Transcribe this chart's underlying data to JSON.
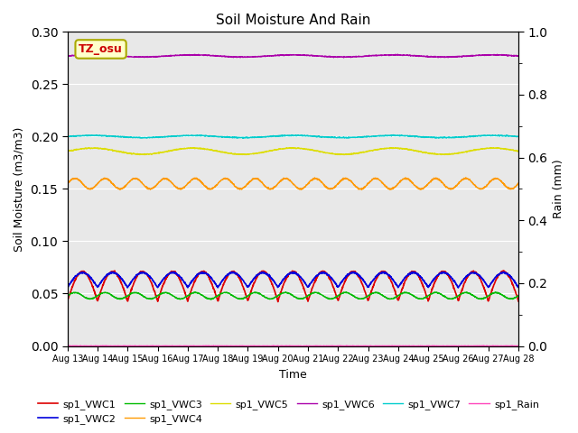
{
  "title": "Soil Moisture And Rain",
  "xlabel": "Time",
  "ylabel_left": "Soil Moisture (m3/m3)",
  "ylabel_right": "Rain (mm)",
  "xlim_days": [
    13,
    28
  ],
  "ylim_left": [
    0.0,
    0.3
  ],
  "ylim_right": [
    0.0,
    1.0
  ],
  "xtick_labels": [
    "Aug 13",
    "Aug 14",
    "Aug 15",
    "Aug 16",
    "Aug 17",
    "Aug 18",
    "Aug 19",
    "Aug 20",
    "Aug 21",
    "Aug 22",
    "Aug 23",
    "Aug 24",
    "Aug 25",
    "Aug 26",
    "Aug 27",
    "Aug 28"
  ],
  "annotation_text": "TZ_osu",
  "annotation_color": "#cc0000",
  "annotation_bg": "#ffffcc",
  "annotation_edge": "#aaaa00",
  "bg_color": "#e8e8e8",
  "series": {
    "sp1_VWC1": {
      "color": "#dd0000",
      "base": 0.057,
      "amp": 0.014,
      "freq": 1.0,
      "noise": 0.0004,
      "lw": 1.2
    },
    "sp1_VWC2": {
      "color": "#0000dd",
      "base": 0.063,
      "amp": 0.007,
      "freq": 1.0,
      "noise": 0.0003,
      "lw": 1.2
    },
    "sp1_VWC3": {
      "color": "#00bb00",
      "base": 0.048,
      "amp": 0.003,
      "freq": 1.0,
      "noise": 0.0002,
      "lw": 1.0
    },
    "sp1_VWC4": {
      "color": "#ff9900",
      "base": 0.155,
      "amp": 0.005,
      "freq": 1.0,
      "noise": 0.0003,
      "lw": 1.0
    },
    "sp1_VWC5": {
      "color": "#dddd00",
      "base": 0.186,
      "amp": 0.003,
      "freq": 0.3,
      "noise": 0.0002,
      "lw": 1.0
    },
    "sp1_VWC6": {
      "color": "#aa00aa",
      "base": 0.277,
      "amp": 0.001,
      "freq": 0.3,
      "noise": 0.0002,
      "lw": 1.0
    },
    "sp1_VWC7": {
      "color": "#00cccc",
      "base": 0.2,
      "amp": 0.001,
      "freq": 0.3,
      "noise": 0.0002,
      "lw": 1.0
    },
    "sp1_Rain": {
      "color": "#ff44bb",
      "base": 0.0,
      "amp": 0.0,
      "freq": 0.0,
      "noise": 0.0,
      "lw": 1.0
    }
  },
  "legend_order": [
    "sp1_VWC1",
    "sp1_VWC2",
    "sp1_VWC3",
    "sp1_VWC4",
    "sp1_VWC5",
    "sp1_VWC6",
    "sp1_VWC7",
    "sp1_Rain"
  ]
}
